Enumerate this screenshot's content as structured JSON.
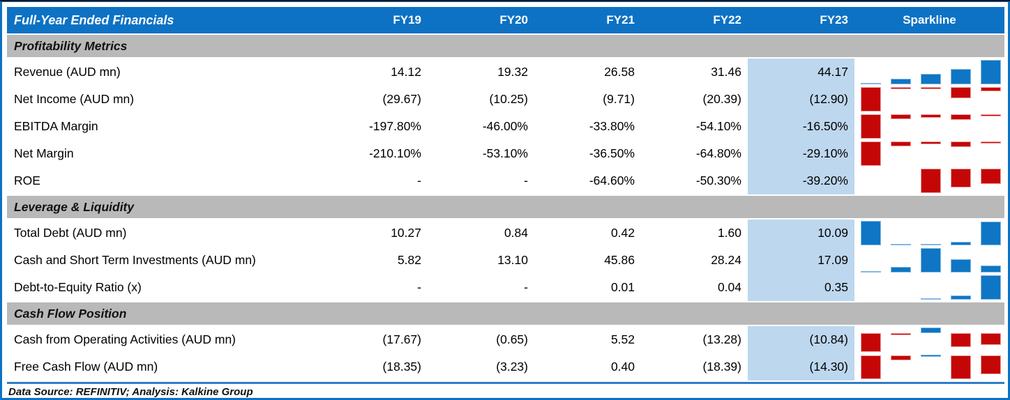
{
  "header": {
    "title": "Full-Year Ended Financials",
    "columns": [
      "FY19",
      "FY20",
      "FY21",
      "FY22",
      "FY23",
      "Sparkline"
    ]
  },
  "sections": [
    {
      "label": "Profitability Metrics",
      "rows": [
        {
          "label": "Revenue (AUD mn)",
          "values": [
            "14.12",
            "19.32",
            "26.58",
            "31.46",
            "44.17"
          ],
          "spark": [
            0.07,
            0.22,
            0.42,
            0.62,
            1.0
          ]
        },
        {
          "label": "Net Income (AUD mn)",
          "values": [
            "(29.67)",
            "(10.25)",
            "(9.71)",
            "(20.39)",
            "(12.90)"
          ],
          "spark": [
            -1.0,
            -0.08,
            -0.06,
            -0.45,
            -0.16
          ]
        },
        {
          "label": "EBITDA Margin",
          "values": [
            "-197.80%",
            "-46.00%",
            "-33.80%",
            "-54.10%",
            "-16.50%"
          ],
          "spark": [
            -1.0,
            -0.2,
            -0.14,
            -0.24,
            -0.06
          ]
        },
        {
          "label": "Net Margin",
          "values": [
            "-210.10%",
            "-53.10%",
            "-36.50%",
            "-64.80%",
            "-29.10%"
          ],
          "spark": [
            -1.0,
            -0.2,
            -0.12,
            -0.24,
            -0.06
          ]
        },
        {
          "label": "ROE",
          "values": [
            "-",
            "-",
            "-64.60%",
            "-50.30%",
            "-39.20%"
          ],
          "spark": [
            null,
            null,
            -1.0,
            -0.76,
            -0.62
          ]
        }
      ]
    },
    {
      "label": "Leverage & Liquidity",
      "rows": [
        {
          "label": "Total Debt (AUD mn)",
          "values": [
            "10.27",
            "0.84",
            "0.42",
            "1.60",
            "10.09"
          ],
          "spark": [
            1.0,
            0.07,
            0.05,
            0.14,
            0.98
          ]
        },
        {
          "label": "Cash and Short Term Investments (AUD mn)",
          "values": [
            "5.82",
            "13.10",
            "45.86",
            "28.24",
            "17.09"
          ],
          "spark": [
            0.06,
            0.22,
            1.0,
            0.55,
            0.3
          ]
        },
        {
          "label": "Debt-to-Equity Ratio (x)",
          "values": [
            "-",
            "-",
            "0.01",
            "0.04",
            "0.35"
          ],
          "spark": [
            null,
            null,
            0.06,
            0.16,
            1.0
          ]
        }
      ]
    },
    {
      "label": "Cash Flow Position",
      "rows": [
        {
          "label": "Cash from Operating Activities (AUD mn)",
          "values": [
            "(17.67)",
            "(0.65)",
            "5.52",
            "(13.28)",
            "(10.84)"
          ],
          "spark": [
            -0.76,
            -0.04,
            0.24,
            -0.57,
            -0.47
          ]
        },
        {
          "label": "Free Cash Flow (AUD mn)",
          "values": [
            "(18.35)",
            "(3.23)",
            "0.40",
            "(18.39)",
            "(14.30)"
          ],
          "spark": [
            -0.9,
            -0.17,
            0.04,
            -0.9,
            -0.7
          ]
        }
      ]
    }
  ],
  "footer": {
    "text": "Data Source: REFINITIV; Analysis: Kalkine Group"
  },
  "colors": {
    "header_blue": "#0d72c4",
    "section_gray": "#b9b9b9",
    "fy23_highlight": "#bdd7ee",
    "spark_positive": "#0e76c4",
    "spark_negative": "#c40606",
    "footer_rule": "#2e7dc8"
  },
  "chart_data": {
    "type": "table",
    "title": "Full-Year Ended Financials",
    "columns": [
      "FY19",
      "FY20",
      "FY21",
      "FY22",
      "FY23"
    ],
    "highlighted_column": "FY23",
    "sparkline_note": "each row has a 5-bar column sparkline; blue = positive values, red = negative values",
    "sections": [
      {
        "name": "Profitability Metrics",
        "rows": [
          {
            "metric": "Revenue (AUD mn)",
            "values": [
              14.12,
              19.32,
              26.58,
              31.46,
              44.17
            ]
          },
          {
            "metric": "Net Income (AUD mn)",
            "values": [
              -29.67,
              -10.25,
              -9.71,
              -20.39,
              -12.9
            ]
          },
          {
            "metric": "EBITDA Margin (%)",
            "values": [
              -197.8,
              -46.0,
              -33.8,
              -54.1,
              -16.5
            ]
          },
          {
            "metric": "Net Margin (%)",
            "values": [
              -210.1,
              -53.1,
              -36.5,
              -64.8,
              -29.1
            ]
          },
          {
            "metric": "ROE (%)",
            "values": [
              null,
              null,
              -64.6,
              -50.3,
              -39.2
            ]
          }
        ]
      },
      {
        "name": "Leverage & Liquidity",
        "rows": [
          {
            "metric": "Total Debt (AUD mn)",
            "values": [
              10.27,
              0.84,
              0.42,
              1.6,
              10.09
            ]
          },
          {
            "metric": "Cash and Short Term Investments (AUD mn)",
            "values": [
              5.82,
              13.1,
              45.86,
              28.24,
              17.09
            ]
          },
          {
            "metric": "Debt-to-Equity Ratio (x)",
            "values": [
              null,
              null,
              0.01,
              0.04,
              0.35
            ]
          }
        ]
      },
      {
        "name": "Cash Flow Position",
        "rows": [
          {
            "metric": "Cash from Operating Activities (AUD mn)",
            "values": [
              -17.67,
              -0.65,
              5.52,
              -13.28,
              -10.84
            ]
          },
          {
            "metric": "Free Cash Flow (AUD mn)",
            "values": [
              -18.35,
              -3.23,
              0.4,
              -18.39,
              -14.3
            ]
          }
        ]
      }
    ]
  }
}
